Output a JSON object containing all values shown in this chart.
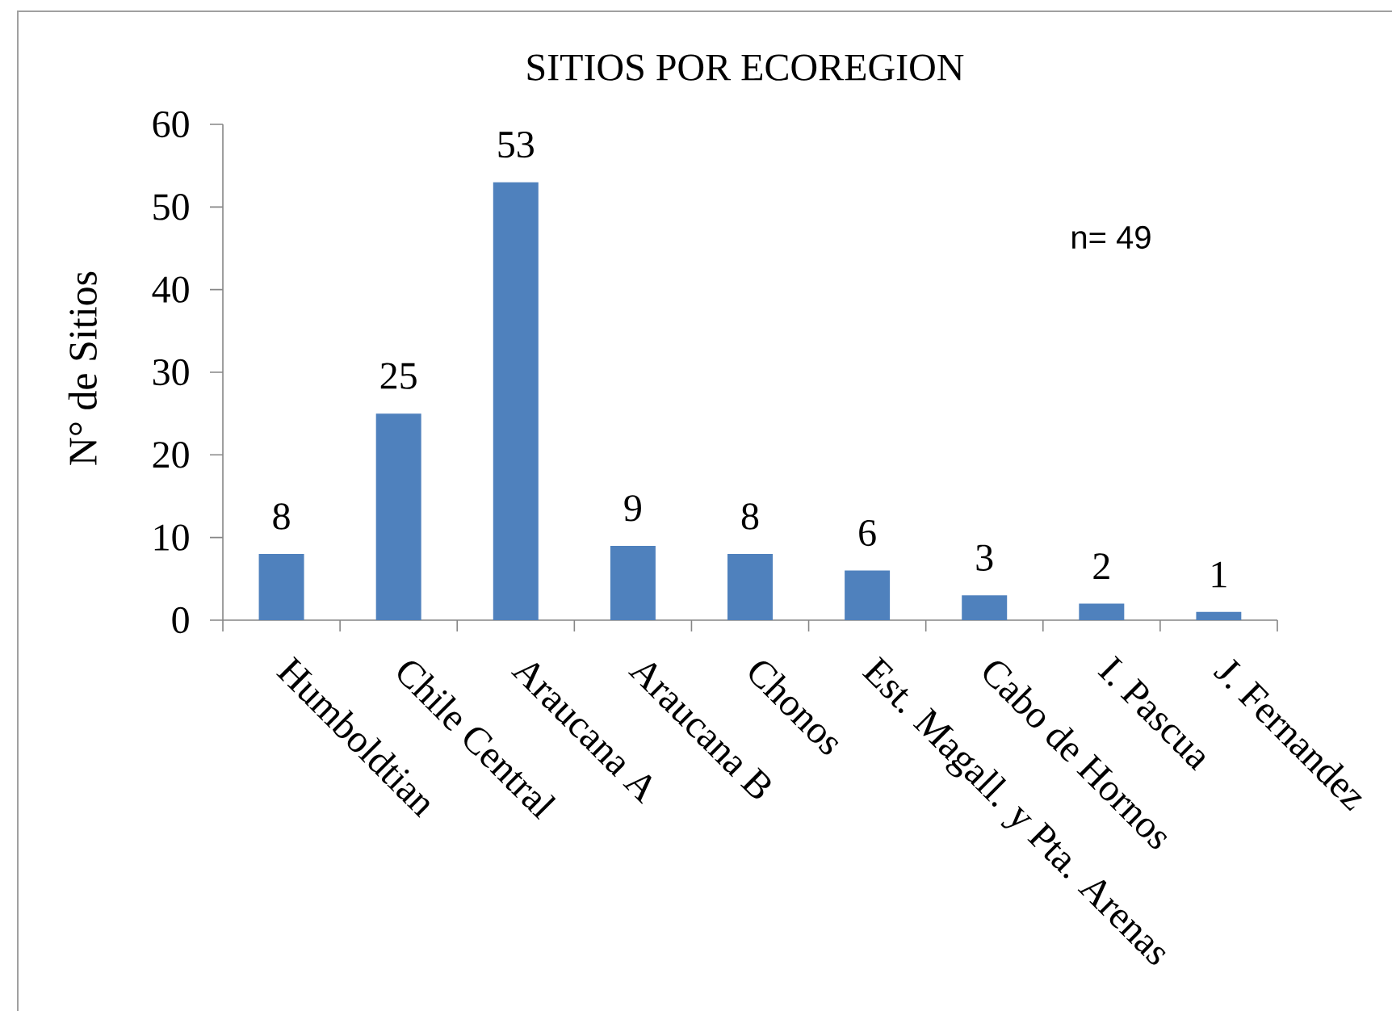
{
  "chart_data": {
    "type": "bar",
    "title": "SITIOS POR ECOREGION",
    "ylabel": "N° de Sitios",
    "categories": [
      "Humboldtian",
      "Chile Central",
      "Araucana A",
      "Araucana B",
      "Chonos",
      "Est. Magall. y Pta. Arenas",
      "Cabo de Hornos",
      "I. Pascua",
      "J. Fernandez"
    ],
    "values": [
      8,
      25,
      53,
      9,
      8,
      6,
      3,
      2,
      1
    ],
    "color": "#4f81bd",
    "ylim": [
      0,
      60
    ],
    "yticks": [
      0,
      10,
      20,
      30,
      40,
      50,
      60
    ],
    "data_labels": true,
    "annotations": [
      "n= 49"
    ]
  }
}
